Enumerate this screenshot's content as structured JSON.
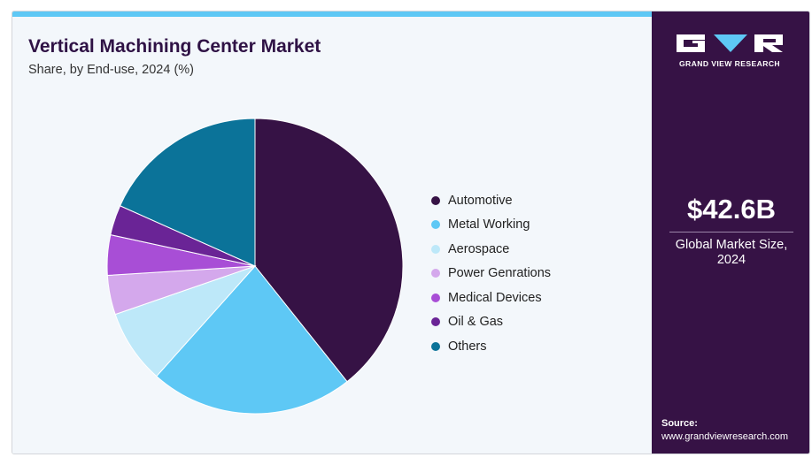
{
  "chart_data": {
    "type": "pie",
    "title": "Vertical Machining Center Market",
    "subtitle": "Share, by End-use, 2024 (%)",
    "legend_position": "right",
    "categories": [
      "Automotive",
      "Metal Working",
      "Aerospace",
      "Power Genrations",
      "Medical Devices",
      "Oil & Gas",
      "Others"
    ],
    "values": [
      39.3,
      22.3,
      8.1,
      4.3,
      4.4,
      3.3,
      18.3
    ],
    "colors": [
      "#361245",
      "#5ec8f5",
      "#bde8f9",
      "#d4a8ec",
      "#a84ed6",
      "#6a2496",
      "#0b7399"
    ]
  },
  "brand": {
    "name": "GRAND VIEW RESEARCH",
    "colors": {
      "sidebar": "#361245",
      "accent": "#5ec8f5"
    }
  },
  "summary": {
    "value": "$42.6B",
    "label_line1": "Global Market Size,",
    "label_line2": "2024"
  },
  "source": {
    "label": "Source:",
    "url": "www.grandviewresearch.com"
  }
}
